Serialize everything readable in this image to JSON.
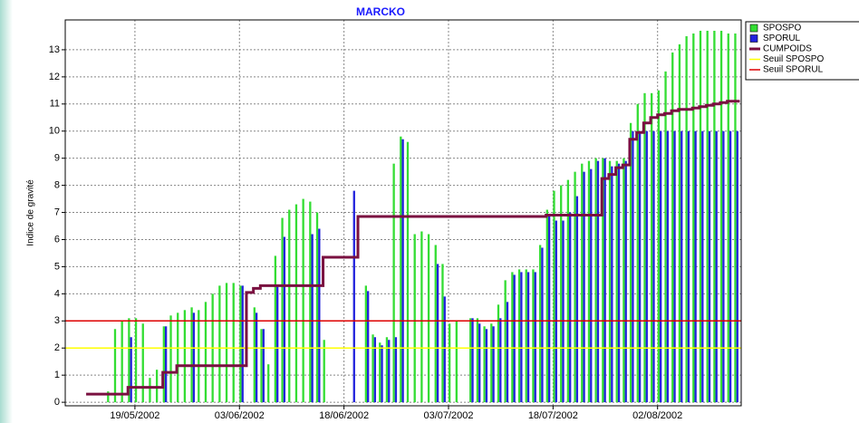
{
  "chart_data": {
    "type": "bar",
    "title": "MARCKO",
    "ylabel": "Indice de gravité",
    "x": [
      "2002-05-12",
      "2002-05-13",
      "2002-05-14",
      "2002-05-15",
      "2002-05-16",
      "2002-05-17",
      "2002-05-18",
      "2002-05-19",
      "2002-05-20",
      "2002-05-21",
      "2002-05-22",
      "2002-05-23",
      "2002-05-24",
      "2002-05-25",
      "2002-05-26",
      "2002-05-27",
      "2002-05-28",
      "2002-05-29",
      "2002-05-30",
      "2002-05-31",
      "2002-06-01",
      "2002-06-02",
      "2002-06-03",
      "2002-06-04",
      "2002-06-05",
      "2002-06-06",
      "2002-06-07",
      "2002-06-08",
      "2002-06-09",
      "2002-06-10",
      "2002-06-11",
      "2002-06-12",
      "2002-06-13",
      "2002-06-14",
      "2002-06-15",
      "2002-06-16",
      "2002-06-17",
      "2002-06-18",
      "2002-06-19",
      "2002-06-20",
      "2002-06-21",
      "2002-06-22",
      "2002-06-23",
      "2002-06-24",
      "2002-06-25",
      "2002-06-26",
      "2002-06-27",
      "2002-06-28",
      "2002-06-29",
      "2002-06-30",
      "2002-07-01",
      "2002-07-02",
      "2002-07-03",
      "2002-07-04",
      "2002-07-05",
      "2002-07-06",
      "2002-07-07",
      "2002-07-08",
      "2002-07-09",
      "2002-07-10",
      "2002-07-11",
      "2002-07-12",
      "2002-07-13",
      "2002-07-14",
      "2002-07-15",
      "2002-07-16",
      "2002-07-17",
      "2002-07-18",
      "2002-07-19",
      "2002-07-20",
      "2002-07-21",
      "2002-07-22",
      "2002-07-23",
      "2002-07-24",
      "2002-07-25",
      "2002-07-26",
      "2002-07-27",
      "2002-07-28",
      "2002-07-29",
      "2002-07-30",
      "2002-07-31",
      "2002-08-01",
      "2002-08-02",
      "2002-08-03",
      "2002-08-04",
      "2002-08-05",
      "2002-08-06",
      "2002-08-07",
      "2002-08-08",
      "2002-08-09",
      "2002-08-10",
      "2002-08-11",
      "2002-08-12",
      "2002-08-13"
    ],
    "series": [
      {
        "name": "SPOSPO",
        "kind": "bar",
        "color": "#33dd33",
        "values": [
          0,
          0,
          0,
          0.4,
          2.7,
          3.0,
          3.1,
          3.1,
          2.9,
          0.9,
          1.2,
          2.8,
          3.2,
          3.3,
          3.4,
          3.5,
          3.4,
          3.7,
          4.0,
          4.3,
          4.4,
          4.4,
          4.3,
          0,
          3.5,
          2.7,
          1.4,
          5.4,
          6.8,
          7.1,
          7.3,
          7.5,
          7.4,
          7.0,
          2.3,
          0,
          0,
          0,
          0,
          0,
          4.3,
          2.5,
          2.2,
          2.4,
          8.8,
          9.8,
          9.6,
          6.2,
          6.3,
          6.2,
          5.8,
          5.1,
          2.9,
          3.0,
          0,
          3.1,
          3.1,
          2.8,
          2.9,
          3.6,
          4.5,
          4.8,
          4.9,
          4.9,
          4.9,
          5.8,
          7.1,
          7.8,
          8.0,
          8.2,
          8.5,
          8.8,
          8.9,
          9.0,
          9.0,
          8.9,
          8.9,
          9.0,
          10.3,
          11.0,
          11.4,
          11.4,
          11.5,
          12.2,
          12.9,
          13.2,
          13.5,
          13.6,
          13.7,
          13.7,
          13.7,
          13.7,
          13.6,
          13.6
        ]
      },
      {
        "name": "SPORUL",
        "kind": "bar",
        "color": "#2222dd",
        "values": [
          0,
          0,
          0,
          0,
          0,
          0,
          2.4,
          0,
          0,
          0,
          0,
          2.8,
          0,
          0,
          0,
          3.3,
          0,
          0,
          0,
          0,
          0,
          0,
          4.3,
          0,
          3.3,
          2.7,
          0,
          4.3,
          6.1,
          0,
          0,
          0,
          6.2,
          6.4,
          0,
          0,
          0,
          0,
          7.8,
          0,
          4.1,
          2.4,
          2.1,
          2.3,
          2.4,
          9.7,
          0,
          0,
          0,
          0,
          5.1,
          3.9,
          0,
          0,
          0,
          3.1,
          2.9,
          2.7,
          2.8,
          3.1,
          3.7,
          4.7,
          4.8,
          4.8,
          4.8,
          5.7,
          6.9,
          6.7,
          6.7,
          7.0,
          7.6,
          8.5,
          8.6,
          8.9,
          9.0,
          8.7,
          8.8,
          8.9,
          10.0,
          10.0,
          10.0,
          10.0,
          10.0,
          10.0,
          10.0,
          10.0,
          10.0,
          10.0,
          10.0,
          10.0,
          10.0,
          10.0,
          10.0,
          10.0
        ]
      },
      {
        "name": "CUMPOIDS",
        "kind": "step",
        "color": "#7a1040",
        "values": [
          0.3,
          0.3,
          0.3,
          0.3,
          0.3,
          0.3,
          0.55,
          0.55,
          0.55,
          0.55,
          0.55,
          1.1,
          1.1,
          1.35,
          1.35,
          1.35,
          1.35,
          1.35,
          1.35,
          1.35,
          1.35,
          1.35,
          1.35,
          4.05,
          4.2,
          4.3,
          4.3,
          4.3,
          4.3,
          4.3,
          4.3,
          4.3,
          4.3,
          4.3,
          5.35,
          5.35,
          5.35,
          5.35,
          5.35,
          6.85,
          6.85,
          6.85,
          6.85,
          6.85,
          6.85,
          6.85,
          6.85,
          6.85,
          6.85,
          6.85,
          6.85,
          6.85,
          6.85,
          6.85,
          6.85,
          6.85,
          6.85,
          6.85,
          6.85,
          6.85,
          6.85,
          6.85,
          6.85,
          6.85,
          6.85,
          6.85,
          6.9,
          6.9,
          6.9,
          6.9,
          6.9,
          6.9,
          6.9,
          6.9,
          8.25,
          8.4,
          8.65,
          8.75,
          9.7,
          9.95,
          10.3,
          10.5,
          10.6,
          10.65,
          10.75,
          10.8,
          10.8,
          10.85,
          10.9,
          10.95,
          11.0,
          11.05,
          11.1,
          11.1
        ]
      }
    ],
    "thresholds": [
      {
        "name": "Seuil SPOSPO",
        "color": "#ffff00",
        "value": 2
      },
      {
        "name": "Seuil SPORUL",
        "color": "#dd0000",
        "value": 3
      }
    ],
    "xlim": [
      "2002-05-09",
      "2002-08-14"
    ],
    "xticks": [
      {
        "value": "2002-05-19",
        "label": "19/05/2002"
      },
      {
        "value": "2002-06-03",
        "label": "03/06/2002"
      },
      {
        "value": "2002-06-18",
        "label": "18/06/2002"
      },
      {
        "value": "2002-07-03",
        "label": "03/07/2002"
      },
      {
        "value": "2002-07-18",
        "label": "18/07/2002"
      },
      {
        "value": "2002-08-02",
        "label": "02/08/2002"
      }
    ],
    "ylim": [
      -0.13,
      14.1
    ],
    "yticks": [
      0,
      1,
      2,
      3,
      4,
      5,
      6,
      7,
      8,
      9,
      10,
      11,
      12,
      13
    ],
    "grid": true
  }
}
